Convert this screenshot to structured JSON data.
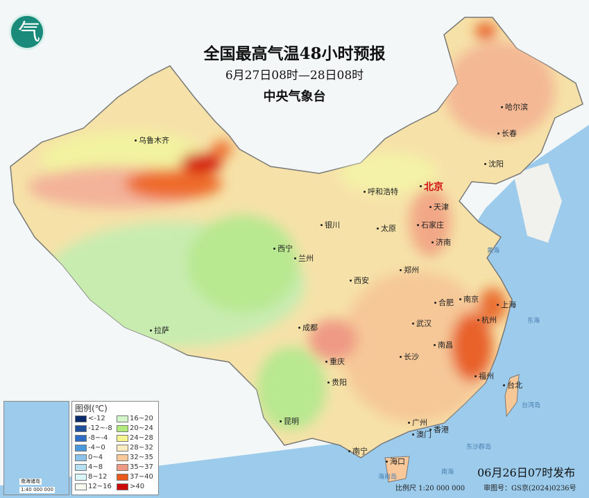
{
  "header": {
    "title": "全国最高气温48小时预报",
    "period": "6月27日08时—28日08时",
    "issuer": "中央气象台"
  },
  "logo": {
    "icon": "cma-logo-icon",
    "glyph": "气"
  },
  "colors": {
    "sea": "#9ccbec",
    "capital_label": "#d01010"
  },
  "cities": [
    {
      "name": "乌鲁木齐"
    },
    {
      "name": "哈尔滨"
    },
    {
      "name": "长春"
    },
    {
      "name": "沈阳"
    },
    {
      "name": "北京",
      "capital": true
    },
    {
      "name": "天津"
    },
    {
      "name": "呼和浩特"
    },
    {
      "name": "石家庄"
    },
    {
      "name": "太原"
    },
    {
      "name": "银川"
    },
    {
      "name": "济南"
    },
    {
      "name": "西宁"
    },
    {
      "name": "兰州"
    },
    {
      "name": "郑州"
    },
    {
      "name": "西安"
    },
    {
      "name": "南京"
    },
    {
      "name": "上海"
    },
    {
      "name": "合肥"
    },
    {
      "name": "武汉"
    },
    {
      "name": "杭州"
    },
    {
      "name": "成都"
    },
    {
      "name": "重庆"
    },
    {
      "name": "长沙"
    },
    {
      "name": "南昌"
    },
    {
      "name": "拉萨"
    },
    {
      "name": "福州"
    },
    {
      "name": "台北"
    },
    {
      "name": "贵阳"
    },
    {
      "name": "昆明"
    },
    {
      "name": "南宁"
    },
    {
      "name": "广州"
    },
    {
      "name": "香港"
    },
    {
      "name": "澳门"
    },
    {
      "name": "海口"
    }
  ],
  "seas": [
    "黄海",
    "东海",
    "台湾岛",
    "东沙群岛",
    "海南岛",
    "南海"
  ],
  "legend": {
    "title": "图例(℃)",
    "items": [
      {
        "label": "<-12",
        "color": "#0a2a6b"
      },
      {
        "label": "16~20",
        "color": "#d4f5cc"
      },
      {
        "label": "-12~-8",
        "color": "#1f4f9a"
      },
      {
        "label": "20~24",
        "color": "#b2ea7c"
      },
      {
        "label": "-8~-4",
        "color": "#2f6cc4"
      },
      {
        "label": "24~28",
        "color": "#f6f590"
      },
      {
        "label": "-4~0",
        "color": "#4a98dc"
      },
      {
        "label": "28~32",
        "color": "#fbecc0"
      },
      {
        "label": "0~4",
        "color": "#8ac2ec"
      },
      {
        "label": "32~35",
        "color": "#f8c89a"
      },
      {
        "label": "4~8",
        "color": "#b6e0f2"
      },
      {
        "label": "35~37",
        "color": "#ef9a84"
      },
      {
        "label": "8~12",
        "color": "#d9f6f8"
      },
      {
        "label": "37~40",
        "color": "#ea5a1c"
      },
      {
        "label": "12~16",
        "color": "#f6fbf2"
      },
      {
        "label": ">40",
        "color": "#cc0a0a"
      }
    ]
  },
  "inset": {
    "title": "南海诸岛",
    "scale": "1:40 000 000"
  },
  "footer": {
    "issued": "06月26日07时发布",
    "scale": "比例尺 1:20 000 000",
    "review": "审图号：GS京(2024)0236号"
  }
}
